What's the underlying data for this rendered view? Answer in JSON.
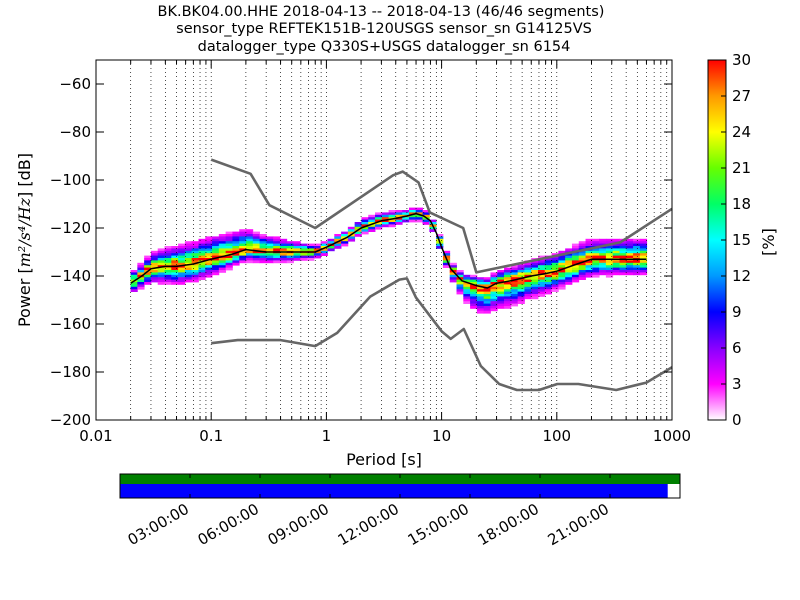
{
  "chart_data": {
    "type": "heatmap",
    "title": {
      "line1": "BK.BK04.00.HHE   2018-04-13 -- 2018-04-13  (46/46 segments)",
      "line2": "sensor_type REFTEK151B-120USGS sensor_sn G14125VS",
      "line3": "datalogger_type Q330S+USGS datalogger_sn 6154"
    },
    "xlabel": "Period [s]",
    "ylabel_prefix": "Power [",
    "ylabel_units": "m²/s⁴/Hz",
    "ylabel_suffix": "] [dB]",
    "x_scale": "log",
    "xlim": [
      0.01,
      1000
    ],
    "ylim": [
      -200,
      -50
    ],
    "x_tick_labels": [
      "0.01",
      "0.1",
      "1",
      "10",
      "100",
      "1000"
    ],
    "x_ticks": [
      0.01,
      0.1,
      1,
      10,
      100,
      1000
    ],
    "y_ticks": [
      -200,
      -180,
      -160,
      -140,
      -120,
      -100,
      -80,
      -60
    ],
    "grid": "dotted vertical",
    "colorbar": {
      "label": "[%]",
      "range": [
        0,
        30
      ],
      "ticks": [
        0,
        3,
        6,
        9,
        12,
        15,
        18,
        21,
        24,
        27,
        30
      ],
      "colors": [
        "#ffffff",
        "#ff00ff",
        "#8800ff",
        "#0000ff",
        "#0099ff",
        "#00ffff",
        "#00ff66",
        "#66ff00",
        "#ffff00",
        "#ff9900",
        "#ff0000"
      ]
    },
    "series": [
      {
        "role": "noise-model-high",
        "color": "#666666",
        "x": [
          0.1,
          0.22,
          0.32,
          0.8,
          3.8,
          4.6,
          6.3,
          7.9,
          15.4,
          20,
          354.8,
          1000
        ],
        "y": [
          -91.5,
          -97.4,
          -110.5,
          -120,
          -98,
          -96.5,
          -101,
          -113.5,
          -120,
          -138.5,
          -126,
          -112
        ]
      },
      {
        "role": "noise-model-low",
        "color": "#666666",
        "x": [
          0.1,
          0.17,
          0.4,
          0.8,
          1.24,
          2.4,
          4.3,
          5.0,
          6.0,
          10,
          12,
          15.6,
          21.9,
          31.6,
          45,
          70,
          101,
          154,
          328,
          600,
          1000
        ],
        "y": [
          -168,
          -166.7,
          -166.7,
          -169.2,
          -163.7,
          -148.6,
          -141.5,
          -141,
          -149,
          -163,
          -166.2,
          -162.1,
          -177.5,
          -185,
          -187.5,
          -187.5,
          -185,
          -185,
          -187.5,
          -184.4,
          -178
        ]
      },
      {
        "role": "mode",
        "color": "#000000",
        "x": [
          0.02,
          0.025,
          0.03,
          0.04,
          0.05,
          0.07,
          0.1,
          0.15,
          0.2,
          0.3,
          0.5,
          0.8,
          1,
          1.5,
          2,
          3,
          4,
          5,
          6,
          7,
          8,
          9,
          10,
          12,
          15,
          20,
          25,
          30,
          40,
          60,
          80,
          100,
          150,
          200,
          300,
          600
        ],
        "y": [
          -143,
          -140,
          -137,
          -136,
          -136,
          -135,
          -133,
          -131,
          -129,
          -130,
          -130,
          -130,
          -128,
          -124,
          -120,
          -117,
          -116,
          -115,
          -114,
          -115,
          -117,
          -122,
          -128,
          -137,
          -142,
          -144,
          -145,
          -143,
          -142,
          -140,
          -139,
          -138,
          -135,
          -133,
          -133,
          -133
        ]
      }
    ],
    "heatmap": {
      "description": "probabilistic PSD density",
      "columns_log10_period": [
        -1.7,
        2.78
      ],
      "column_count": 76,
      "center": {
        "x": [
          0.02,
          0.025,
          0.03,
          0.04,
          0.05,
          0.07,
          0.1,
          0.15,
          0.2,
          0.3,
          0.5,
          0.8,
          1,
          1.5,
          2,
          3,
          4,
          5,
          6,
          7,
          8,
          9,
          10,
          12,
          15,
          20,
          25,
          30,
          40,
          60,
          80,
          100,
          150,
          200,
          300,
          600
        ],
        "y": [
          -143,
          -140,
          -137,
          -136,
          -136,
          -135,
          -133,
          -131,
          -129,
          -130,
          -130,
          -130,
          -128,
          -124,
          -120,
          -117,
          -116,
          -115,
          -114,
          -115,
          -117,
          -122,
          -128,
          -137,
          -142,
          -144,
          -145,
          -143,
          -142,
          -140,
          -139,
          -138,
          -135,
          -133,
          -133,
          -133
        ]
      },
      "spread_db": {
        "x": [
          0.02,
          0.05,
          0.1,
          0.2,
          0.5,
          0.8,
          1,
          2,
          5,
          8,
          12,
          20,
          40,
          100,
          300,
          600
        ],
        "up": [
          3.5,
          8,
          9,
          8,
          4,
          2,
          2,
          3,
          2,
          2,
          2,
          3,
          5,
          7,
          8,
          8
        ],
        "down": [
          3.5,
          7,
          6,
          4,
          3,
          2,
          2,
          2,
          2,
          2,
          3,
          10,
          10,
          7,
          6,
          6
        ]
      }
    }
  },
  "availability": {
    "coverage_fraction": 0.978,
    "top_bar_color": "#008000",
    "bottom_bar_color": "#0000ff",
    "time_labels": [
      "03:00:00",
      "06:00:00",
      "09:00:00",
      "12:00:00",
      "15:00:00",
      "18:00:00",
      "21:00:00"
    ],
    "time_ticks_hours": [
      3,
      6,
      9,
      12,
      15,
      18,
      21
    ],
    "span_hours": 24
  }
}
